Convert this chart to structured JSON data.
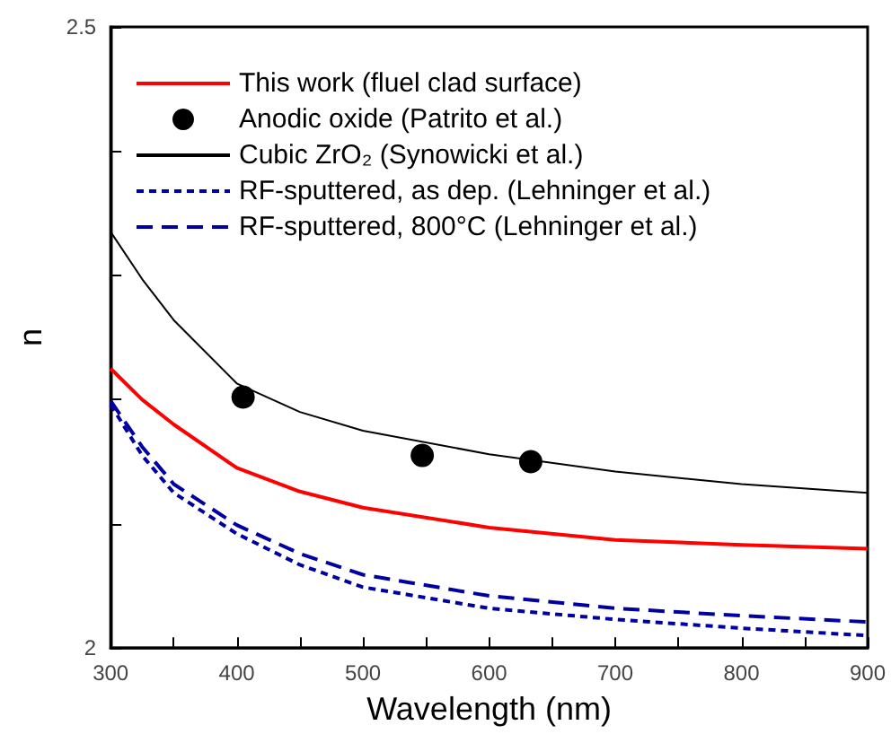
{
  "chart_data": {
    "type": "line",
    "xlabel": "Wavelength (nm)",
    "ylabel": "n",
    "xlim": [
      300,
      900
    ],
    "ylim": [
      2,
      2.5
    ],
    "xticks": [
      300,
      {
        "value": 350,
        "label": null
      },
      400,
      {
        "value": 450,
        "label": null
      },
      500,
      {
        "value": 550,
        "label": null
      },
      600,
      {
        "value": 650,
        "label": null
      },
      700,
      {
        "value": 750,
        "label": null
      },
      800,
      {
        "value": 850,
        "label": null
      },
      900
    ],
    "yticks": [
      2,
      {
        "value": 2.1,
        "label": null
      },
      {
        "value": 2.2,
        "label": null
      },
      {
        "value": 2.3,
        "label": null
      },
      {
        "value": 2.4,
        "label": null
      },
      2.5
    ],
    "grid": false,
    "legend": "top left",
    "series": [
      {
        "name": "This work (fluel clad surface)",
        "color": "#ff0000",
        "line_style": "solid",
        "marker": "none",
        "x": [
          300,
          325,
          350,
          400,
          450,
          500,
          600,
          700,
          800,
          900
        ],
        "values": [
          2.225,
          2.2,
          2.18,
          2.145,
          2.126,
          2.113,
          2.097,
          2.087,
          2.083,
          2.08
        ]
      },
      {
        "name": "Anodic oxide (Patrito et al.)",
        "type": "scatter",
        "color": "#000000",
        "marker": "circle",
        "x": [
          405,
          547,
          633
        ],
        "values": [
          2.202,
          2.155,
          2.15
        ]
      },
      {
        "name": "Cubic ZrO₂ (Synowicki et al.)",
        "color": "#000000",
        "line_style": "solid",
        "marker": "none",
        "x": [
          300,
          325,
          350,
          400,
          450,
          500,
          600,
          700,
          800,
          900
        ],
        "values": [
          2.335,
          2.297,
          2.264,
          2.213,
          2.19,
          2.175,
          2.156,
          2.142,
          2.132,
          2.125
        ]
      },
      {
        "name": "RF-sputtered, as dep. (Lehninger et al.)",
        "color": "#0000a0",
        "line_style": "dotted",
        "marker": "none",
        "x": [
          300,
          325,
          350,
          400,
          450,
          500,
          600,
          700,
          800,
          900
        ],
        "values": [
          2.196,
          2.155,
          2.125,
          2.092,
          2.067,
          2.049,
          2.032,
          2.023,
          2.016,
          2.01
        ]
      },
      {
        "name": "RF-sputtered, 800°C (Lehninger et al.)",
        "color": "#0000a0",
        "line_style": "dashed",
        "marker": "none",
        "x": [
          300,
          325,
          350,
          400,
          450,
          500,
          600,
          700,
          800,
          900
        ],
        "values": [
          2.199,
          2.162,
          2.132,
          2.099,
          2.076,
          2.059,
          2.042,
          2.032,
          2.026,
          2.021
        ]
      }
    ]
  }
}
